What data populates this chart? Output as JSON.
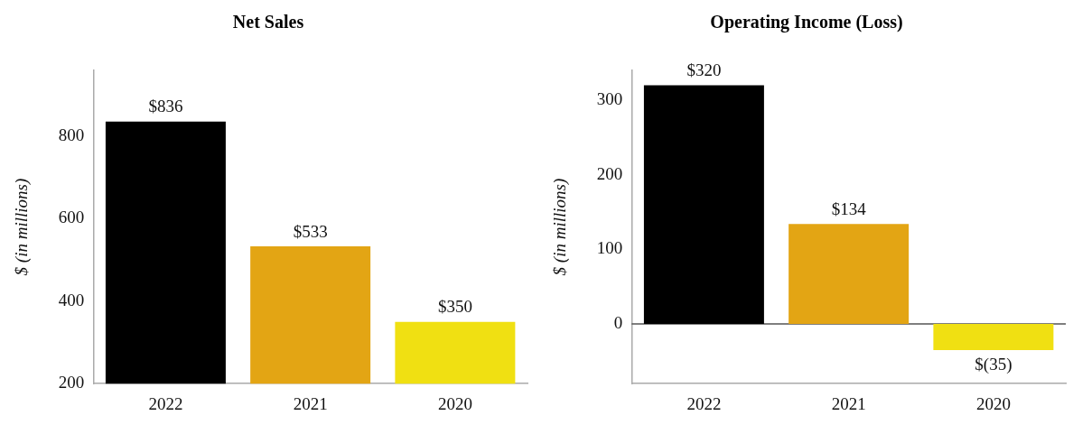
{
  "chart_data": [
    {
      "type": "bar",
      "title": "Net Sales",
      "ylabel": "$ (in millions)",
      "categories": [
        "2022",
        "2021",
        "2020"
      ],
      "values": [
        836,
        533,
        350
      ],
      "colors": [
        "#000000",
        "#e3a514",
        "#f0e012"
      ],
      "value_labels": [
        "$836",
        "$533",
        "$350"
      ],
      "ylim": [
        200,
        960
      ],
      "yticks": [
        200,
        400,
        600,
        800
      ],
      "grid": false,
      "legend": false
    },
    {
      "type": "bar",
      "title": "Operating Income (Loss)",
      "ylabel": "$ (in millions)",
      "categories": [
        "2022",
        "2021",
        "2020"
      ],
      "values": [
        320,
        134,
        -35
      ],
      "colors": [
        "#000000",
        "#e3a514",
        "#f0e012"
      ],
      "value_labels": [
        "$320",
        "$134",
        "$(35)"
      ],
      "ylim": [
        -80,
        340
      ],
      "yticks": [
        0,
        100,
        200,
        300
      ],
      "grid": false,
      "legend": false,
      "ref_lines": [
        {
          "axis": "y",
          "value": 0,
          "color": "#555555"
        }
      ]
    }
  ]
}
